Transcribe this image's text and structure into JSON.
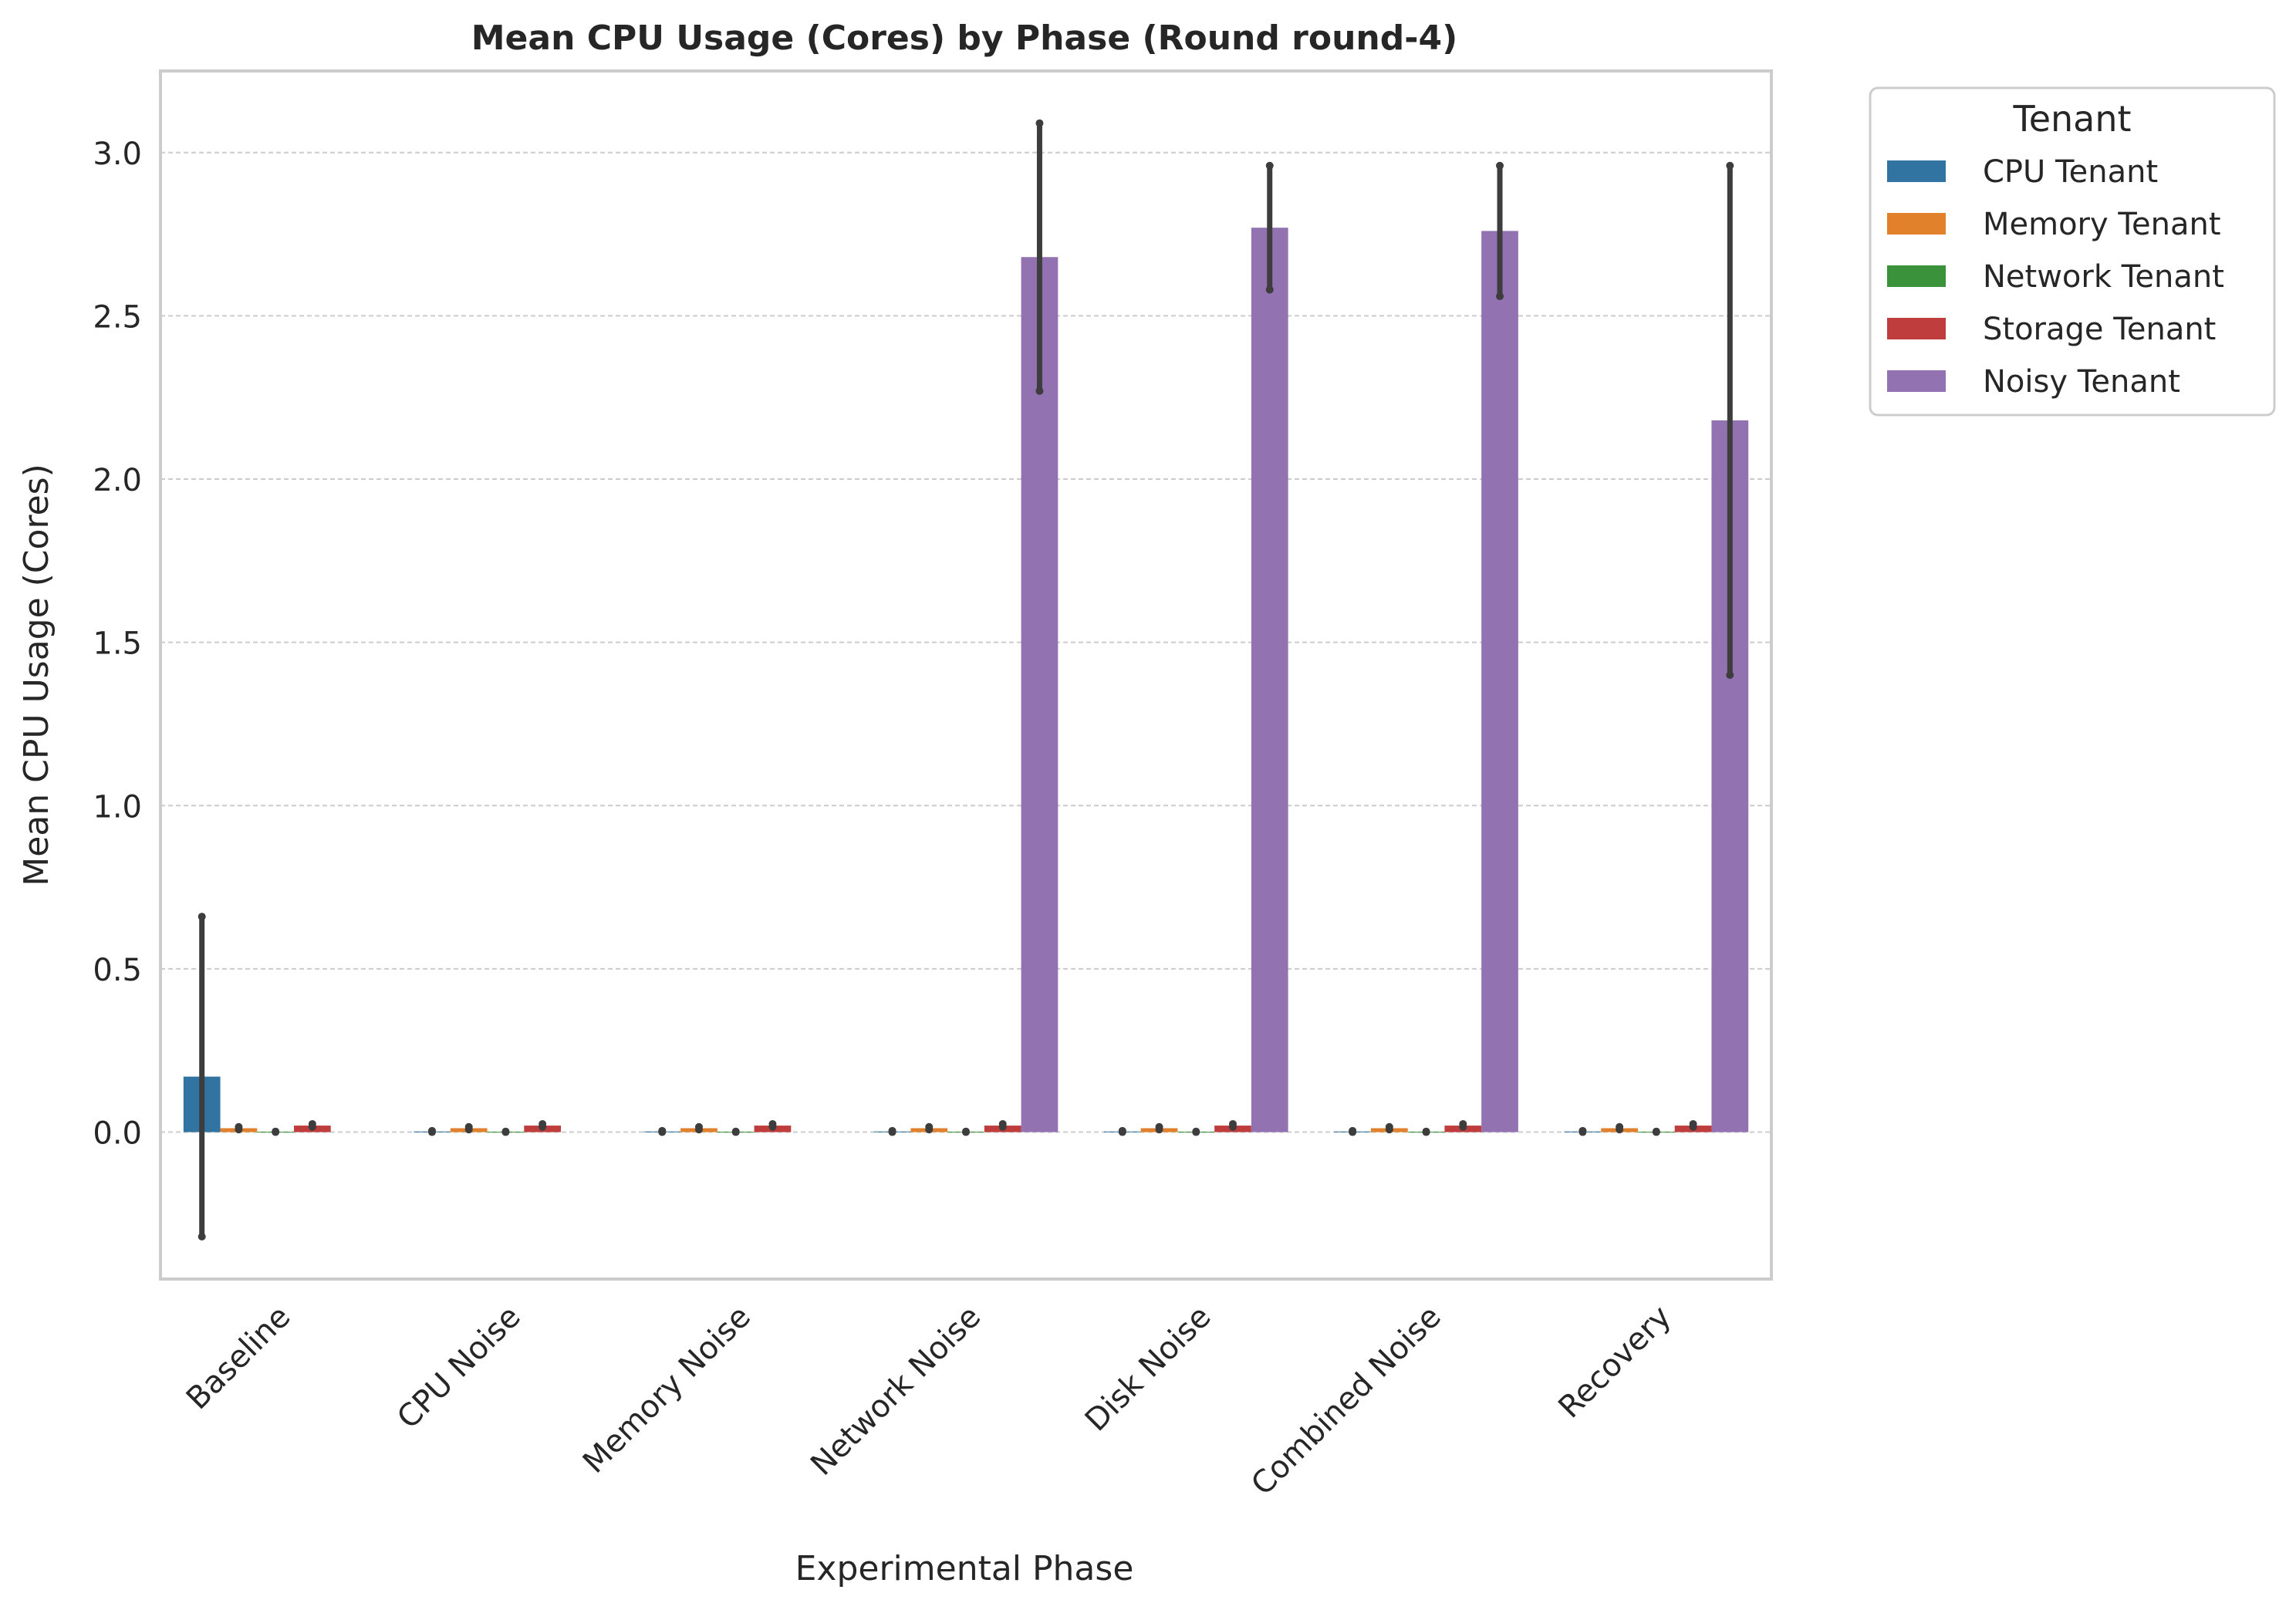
{
  "chart_data": {
    "type": "bar",
    "title": "Mean CPU Usage (Cores) by Phase (Round round-4)",
    "xlabel": "Experimental Phase",
    "ylabel": "Mean CPU Usage (Cores)",
    "ylim": [
      -0.45,
      3.25
    ],
    "yticks": [
      0.0,
      0.5,
      1.0,
      1.5,
      2.0,
      2.5,
      3.0
    ],
    "ytick_labels": [
      "0.0",
      "0.5",
      "1.0",
      "1.5",
      "2.0",
      "2.5",
      "3.0"
    ],
    "grid": "y-dashed",
    "categories": [
      "Baseline",
      "CPU Noise",
      "Memory Noise",
      "Network Noise",
      "Disk Noise",
      "Combined Noise",
      "Recovery"
    ],
    "legend": {
      "title": "Tenant",
      "placement": "outside-top-right"
    },
    "series": [
      {
        "name": "CPU Tenant",
        "color": "#3274a1",
        "values": [
          0.17,
          0.002,
          0.002,
          0.002,
          0.002,
          0.002,
          0.002
        ],
        "err_low": [
          -0.32,
          0.0,
          0.0,
          0.0,
          0.0,
          0.0,
          0.0
        ],
        "err_high": [
          0.66,
          0.004,
          0.004,
          0.004,
          0.004,
          0.004,
          0.004
        ]
      },
      {
        "name": "Memory Tenant",
        "color": "#e1812c",
        "values": [
          0.012,
          0.012,
          0.012,
          0.012,
          0.012,
          0.012,
          0.012
        ],
        "err_low": [
          0.008,
          0.008,
          0.008,
          0.008,
          0.008,
          0.008,
          0.008
        ],
        "err_high": [
          0.016,
          0.016,
          0.016,
          0.016,
          0.016,
          0.016,
          0.016
        ]
      },
      {
        "name": "Network Tenant",
        "color": "#3a923a",
        "values": [
          0.001,
          0.001,
          0.001,
          0.001,
          0.001,
          0.001,
          0.001
        ],
        "err_low": [
          0.0,
          0.0,
          0.0,
          0.0,
          0.0,
          0.0,
          0.0
        ],
        "err_high": [
          0.002,
          0.002,
          0.002,
          0.002,
          0.002,
          0.002,
          0.002
        ]
      },
      {
        "name": "Storage Tenant",
        "color": "#c03d3e",
        "values": [
          0.02,
          0.02,
          0.02,
          0.02,
          0.02,
          0.02,
          0.02
        ],
        "err_low": [
          0.016,
          0.016,
          0.016,
          0.016,
          0.016,
          0.016,
          0.016
        ],
        "err_high": [
          0.025,
          0.025,
          0.025,
          0.025,
          0.025,
          0.025,
          0.025
        ]
      },
      {
        "name": "Noisy Tenant",
        "color": "#9372b2",
        "values": [
          0,
          0,
          0,
          2.68,
          2.77,
          2.76,
          2.18
        ],
        "err_low": [
          null,
          null,
          null,
          2.27,
          2.58,
          2.56,
          1.4
        ],
        "err_high": [
          null,
          null,
          null,
          3.09,
          2.96,
          2.96,
          2.96
        ]
      }
    ]
  }
}
